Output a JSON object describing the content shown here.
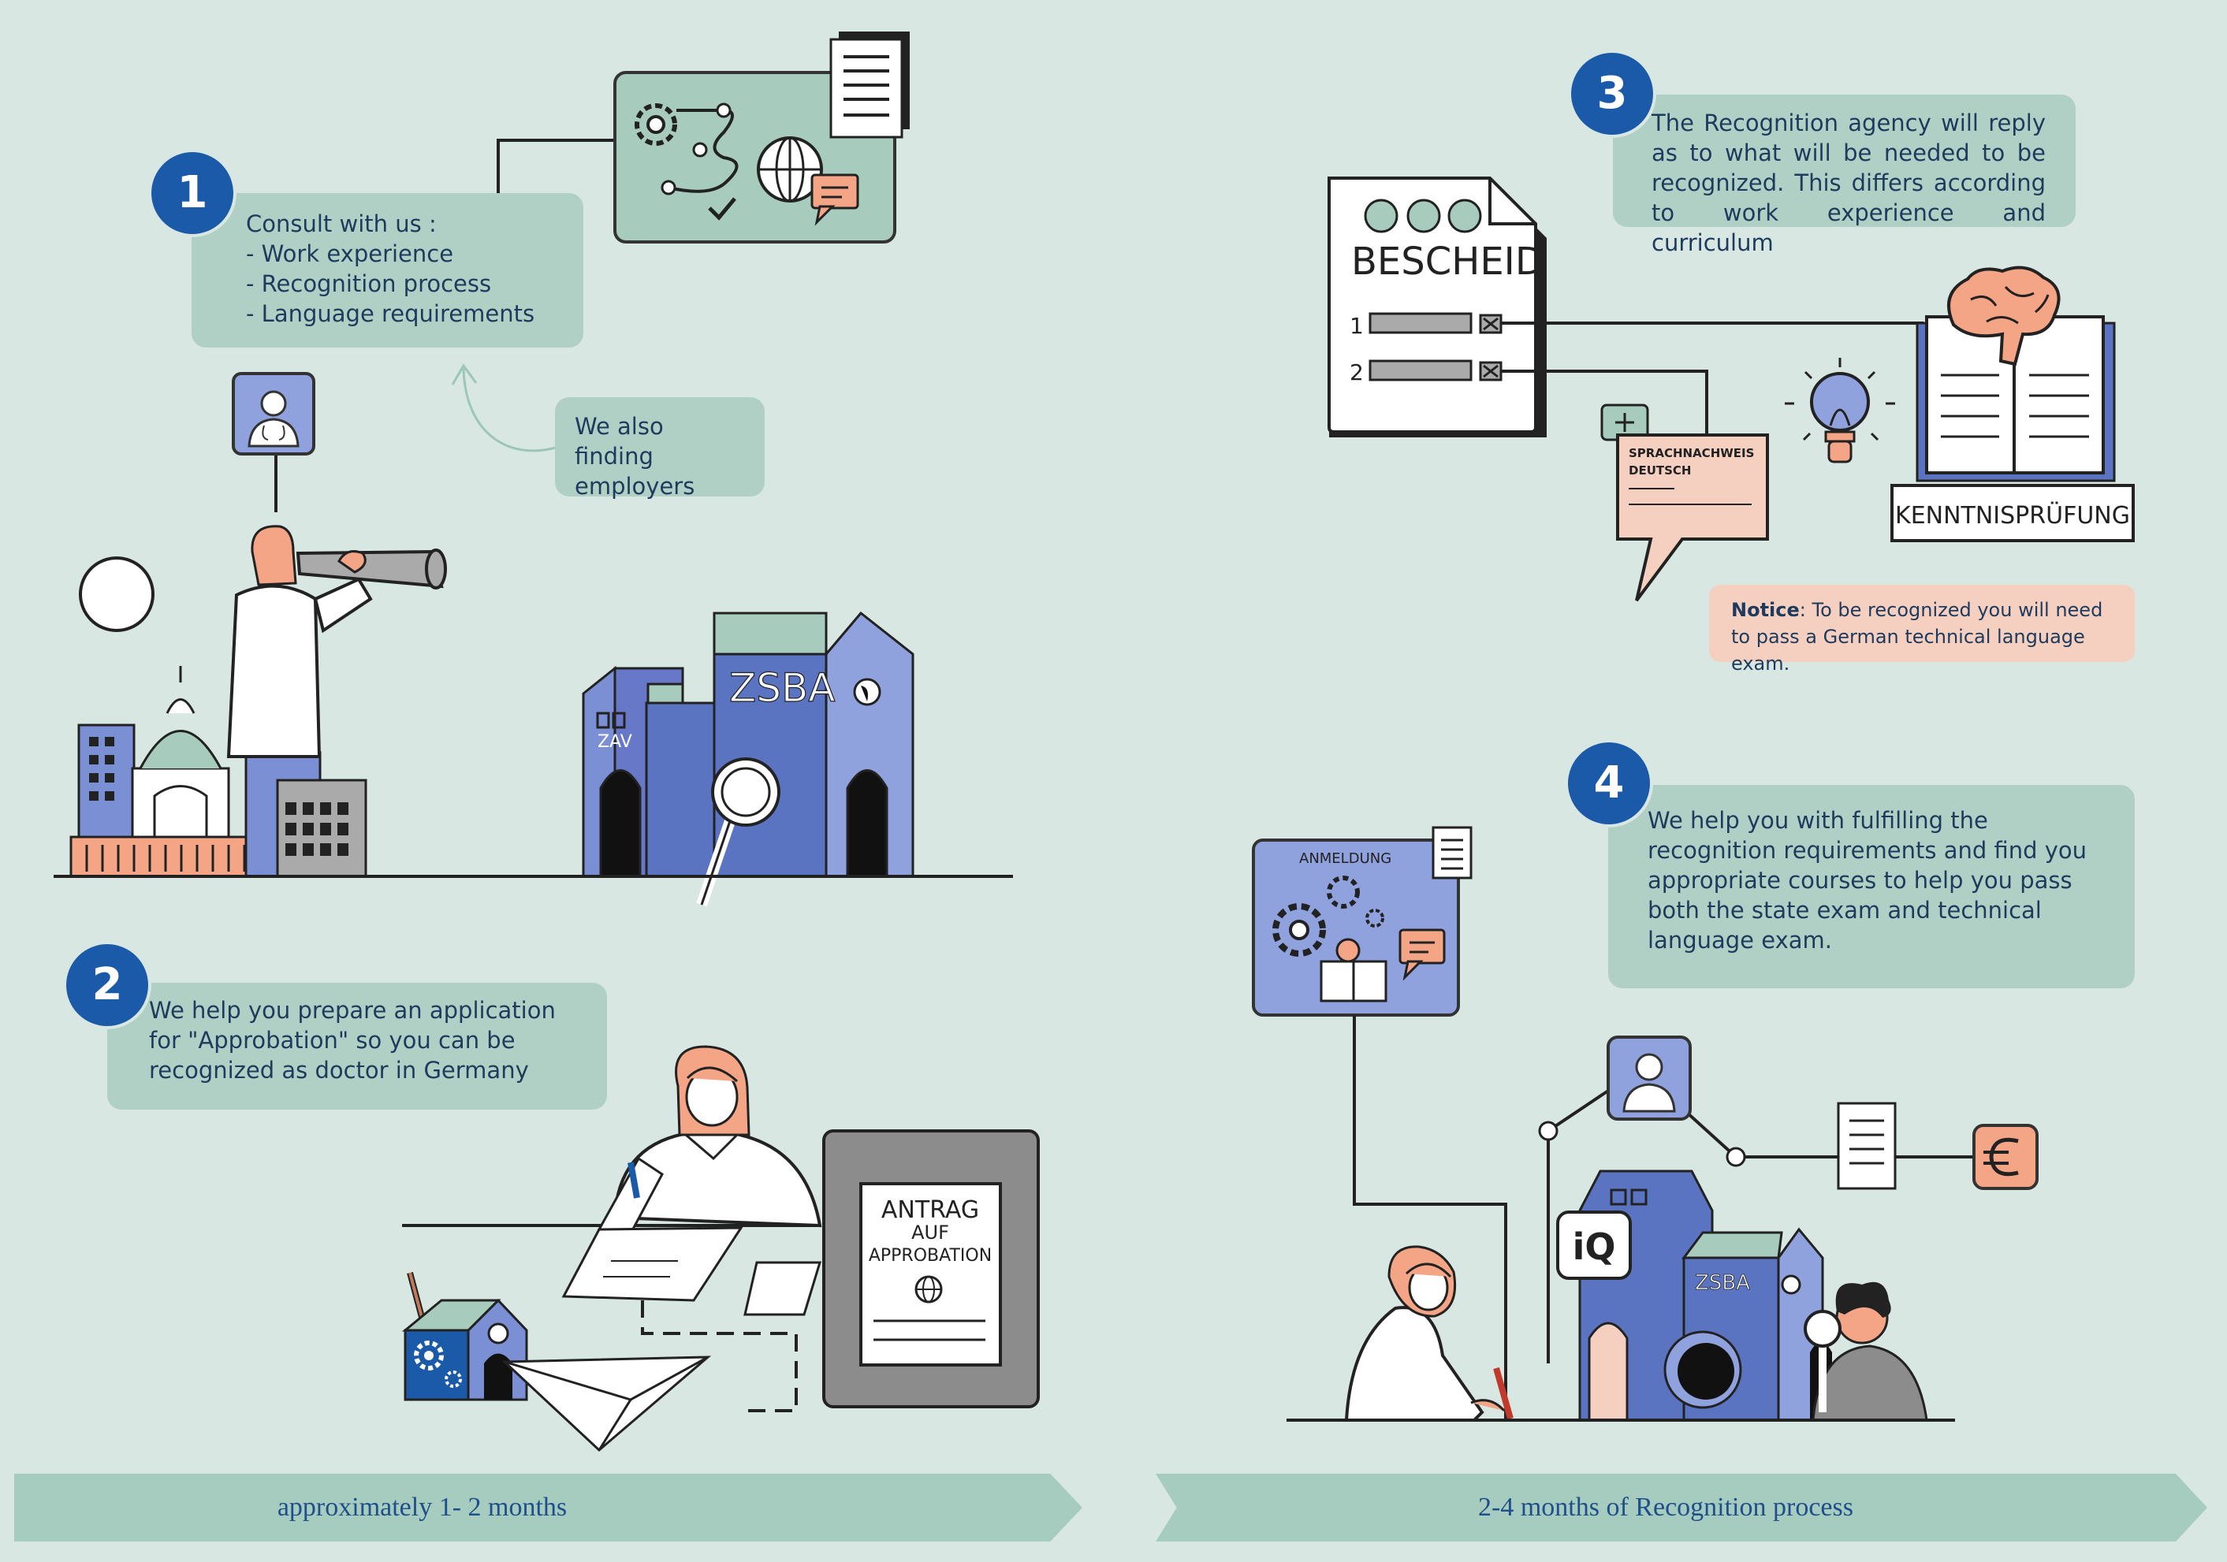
{
  "steps": [
    {
      "number": "1",
      "text": "Consult with us :\n- Work experience\n- Recognition process\n- Language requirements"
    },
    {
      "number": "2",
      "text": "We help you prepare an application for \"Approbation\" so you can be recognized as doctor in Germany"
    },
    {
      "number": "3",
      "text": "The Recognition agency will reply as to what will be needed to be recognized. This differs according to work experience and curriculum"
    },
    {
      "number": "4",
      "text": "We help you with  fulfilling the recognition requirements and find you appropriate courses to help you pass both the state exam and technical language exam."
    }
  ],
  "side_note": "We also finding employers",
  "notice": {
    "label": "Notice",
    "text": ": To be recognized you will need to pass a German technical language exam."
  },
  "timeline": {
    "phase1": "approximately 1- 2 months",
    "phase2": "2-4 months of Recognition process"
  },
  "illustration_text": {
    "zsba": "ZSBA",
    "zav": "ZAV",
    "bescheid": "BESCHEID",
    "row1": "1",
    "row2": "2",
    "sprach1": "SPRACHNACHWEIS",
    "sprach2": "DEUTSCH",
    "kenntnis": "KENNTNISPRÜFUNG",
    "antrag1": "ANTRAG",
    "antrag2": "AUF",
    "antrag3": "APPROBATION",
    "anmeldung": "ANMELDUNG",
    "iq": "iQ",
    "zsba_small": "ZSBA"
  },
  "colors": {
    "background": "#d9e7e3",
    "box": "#b0d0c6",
    "badge": "#1b5aa8",
    "notice": "#f5cfc0",
    "banner": "#a6cbbf",
    "building": "#5b74c2"
  },
  "icons": [
    "gear-icon",
    "globe-icon",
    "chat-icon",
    "document-icon",
    "doctor-avatar-icon",
    "brain-icon",
    "lightbulb-icon",
    "euro-icon",
    "magnifier-icon",
    "paper-plane-icon"
  ]
}
